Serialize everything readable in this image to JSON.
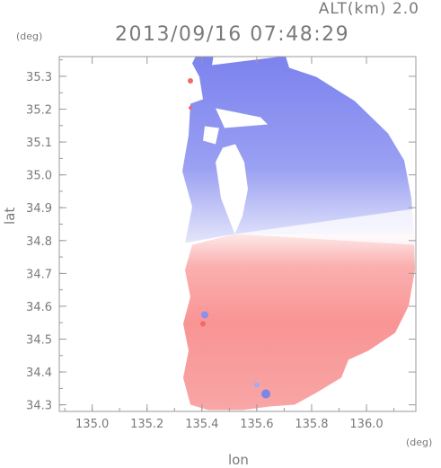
{
  "header": {
    "altitude_label": "ALT(km) 2.0",
    "timestamp": "2013/09/16 07:48:29"
  },
  "chart_data": {
    "type": "heatmap",
    "title": "2013/09/16 07:48:29",
    "subtitle": "ALT(km) 2.0",
    "xlabel": "lon",
    "ylabel": "lat",
    "x_unit": "(deg)",
    "y_unit": "(deg)",
    "xlim": [
      134.88,
      136.18
    ],
    "ylim": [
      34.28,
      35.36
    ],
    "x_ticks": [
      135.0,
      135.2,
      135.4,
      135.6,
      135.8,
      136.0
    ],
    "x_tick_labels": [
      "135.0",
      "135.2",
      "135.4",
      "135.6",
      "135.8",
      "136.0"
    ],
    "y_ticks": [
      34.3,
      34.4,
      34.5,
      34.6,
      34.7,
      34.8,
      34.9,
      35.0,
      35.1,
      35.2,
      35.3
    ],
    "y_tick_labels": [
      "34.3",
      "34.4",
      "34.5",
      "34.6",
      "34.7",
      "34.8",
      "34.9",
      "35.0",
      "35.1",
      "35.2",
      "35.3"
    ],
    "grid": false,
    "radar_center": [
      135.52,
      34.82
    ],
    "colors": {
      "towards": "#7f86f0",
      "away": "#f99090",
      "axis": "#9a9a9a"
    },
    "field": {
      "north_sector": "blue (negative)",
      "south_sector": "red (positive)"
    }
  }
}
